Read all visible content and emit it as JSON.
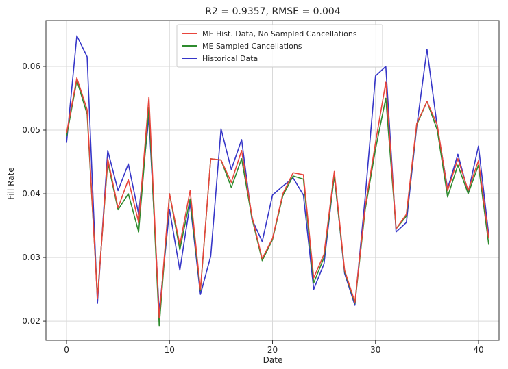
{
  "chart_data": {
    "type": "line",
    "title": "R2 = 0.9357, RMSE = 0.004",
    "xlabel": "Date",
    "ylabel": "Fill Rate",
    "xlim": [
      -2,
      42
    ],
    "ylim": [
      0.017,
      0.0672
    ],
    "xticks": [
      0,
      10,
      20,
      30,
      40
    ],
    "xtick_labels": [
      "0",
      "10",
      "20",
      "30",
      "40"
    ],
    "yticks": [
      0.02,
      0.03,
      0.04,
      0.05,
      0.06
    ],
    "ytick_labels": [
      "0.02",
      "0.03",
      "0.04",
      "0.05",
      "0.06"
    ],
    "grid": true,
    "legend_position": "top-center",
    "x": [
      0,
      1,
      2,
      3,
      4,
      5,
      6,
      7,
      8,
      9,
      10,
      11,
      12,
      13,
      14,
      15,
      16,
      17,
      18,
      19,
      20,
      21,
      22,
      23,
      24,
      25,
      26,
      27,
      28,
      29,
      30,
      31,
      32,
      33,
      34,
      35,
      36,
      37,
      38,
      39,
      40,
      41
    ],
    "series": [
      {
        "name": "ME Hist. Data, No Sampled Cancellations",
        "color": "#e8453c",
        "values": [
          0.0495,
          0.0582,
          0.0532,
          0.0235,
          0.0455,
          0.0378,
          0.0422,
          0.0355,
          0.0552,
          0.0205,
          0.04,
          0.032,
          0.0405,
          0.025,
          0.0455,
          0.0453,
          0.0418,
          0.0468,
          0.0365,
          0.0298,
          0.033,
          0.04,
          0.0433,
          0.043,
          0.0268,
          0.0305,
          0.0435,
          0.028,
          0.023,
          0.038,
          0.048,
          0.0575,
          0.0345,
          0.0368,
          0.051,
          0.0545,
          0.0508,
          0.0405,
          0.0455,
          0.0405,
          0.0452,
          0.033
        ]
      },
      {
        "name": "ME Sampled Cancellations",
        "color": "#2e8b2e",
        "values": [
          0.049,
          0.0578,
          0.0525,
          0.0238,
          0.045,
          0.0375,
          0.04,
          0.034,
          0.0535,
          0.0193,
          0.04,
          0.0312,
          0.0392,
          0.0248,
          0.0455,
          0.0453,
          0.041,
          0.0455,
          0.0362,
          0.0295,
          0.0328,
          0.0397,
          0.0428,
          0.0423,
          0.026,
          0.03,
          0.0428,
          0.0278,
          0.0228,
          0.0375,
          0.047,
          0.055,
          0.0345,
          0.0365,
          0.0508,
          0.0545,
          0.05,
          0.0395,
          0.0445,
          0.04,
          0.0445,
          0.032
        ]
      },
      {
        "name": "Historical Data",
        "color": "#3636c8",
        "values": [
          0.048,
          0.0648,
          0.0615,
          0.0228,
          0.0468,
          0.0405,
          0.0447,
          0.0368,
          0.052,
          0.0215,
          0.0375,
          0.028,
          0.0385,
          0.0242,
          0.0302,
          0.0502,
          0.0438,
          0.0485,
          0.036,
          0.0325,
          0.0398,
          0.0412,
          0.0425,
          0.0398,
          0.025,
          0.029,
          0.043,
          0.0275,
          0.0225,
          0.0395,
          0.0585,
          0.06,
          0.034,
          0.0355,
          0.0505,
          0.0627,
          0.0505,
          0.0408,
          0.0462,
          0.0402,
          0.0475,
          0.0335
        ]
      }
    ]
  }
}
